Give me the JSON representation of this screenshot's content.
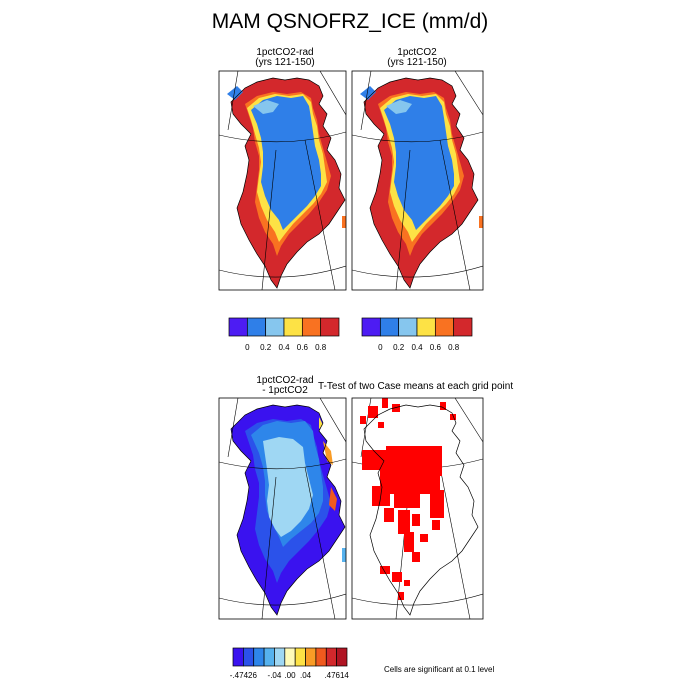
{
  "title": "MAM QSNOFRZ_ICE (mm/d)",
  "panels": [
    {
      "id": "p1",
      "title_line1": "1pctCO2-rad",
      "title_line2": "(yrs 121-150)"
    },
    {
      "id": "p2",
      "title_line1": "1pctCO2",
      "title_line2": "(yrs 121-150)"
    },
    {
      "id": "p3",
      "title_line1": "1pctCO2-rad",
      "title_line2": "- 1pctCO2"
    },
    {
      "id": "p4",
      "title_line1": "T-Test of two Case means at each grid point",
      "title_line2": ""
    }
  ],
  "colorbar_top": {
    "colors": [
      "#4d1cf3",
      "#2f7fe8",
      "#86c6ee",
      "#fde245",
      "#f97221",
      "#d3282c"
    ],
    "labels": [
      "0",
      "0.2",
      "0.4",
      "0.6",
      "0.8"
    ]
  },
  "colorbar_bottom": {
    "colors": [
      "#3a12ef",
      "#2b52ea",
      "#2e86ea",
      "#56b2ee",
      "#9fd7f3",
      "#fffbb8",
      "#fde245",
      "#f99c26",
      "#f05a1e",
      "#d3282c",
      "#b01423"
    ],
    "labels": [
      "-.47426",
      "-.04",
      ".00",
      ".04",
      ".47614"
    ]
  },
  "significance_note": "Cells are significant at 0.1 level",
  "colors": {
    "significant": "#ff0000",
    "land_outline": "#000000",
    "frame": "#000000"
  }
}
